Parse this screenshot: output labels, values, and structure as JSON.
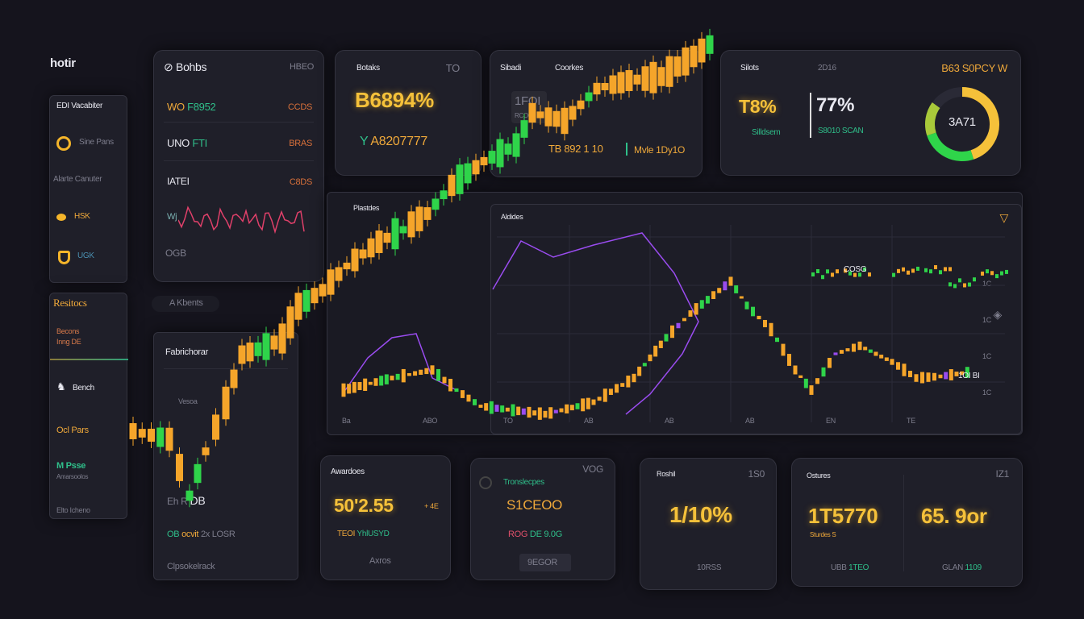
{
  "app": {
    "logo": "hotir"
  },
  "sidebar": {
    "panel1": {
      "items": [
        {
          "label": "EDI Vacabiter"
        },
        {
          "label": "Sine Pans",
          "icon": "clock-icon"
        },
        {
          "label": "Alarte Canuter"
        },
        {
          "label": "HSK",
          "icon": "coin-icon"
        },
        {
          "label": "UGK",
          "icon": "shield-icon"
        }
      ]
    },
    "panel2": {
      "title": "Resitocs",
      "sub1": "Becons",
      "sub2": "Inng DE",
      "items": [
        {
          "label": "Bench",
          "icon": "bull-icon"
        },
        {
          "label": "Ocl Pars"
        },
        {
          "label": "M Psse",
          "sub": "Amarsoolos"
        },
        {
          "label": "Elto Icheno"
        }
      ]
    }
  },
  "card_bohbs": {
    "title": "Bohbs",
    "right": "HBEO",
    "rows": [
      {
        "a": "WO",
        "b": "F8952",
        "v": "CCDS"
      },
      {
        "a": "UNO",
        "b": "FTI",
        "v": "BRAS"
      },
      {
        "a": "IATEI",
        "b": "",
        "v": "C8DS"
      }
    ],
    "spark_label": "Wj",
    "footer": "OGB"
  },
  "pill": {
    "label": "A Kbents"
  },
  "card_fab": {
    "title": "Fabrichorar",
    "mid": "Vesoa",
    "val": "DB",
    "val_prefix": "Eh R",
    "row_a": "OB",
    "row_b": "ocvit",
    "row_c": "2x LOSR",
    "footer": "Clpsokelrack"
  },
  "card_botaks": {
    "title": "Botaks",
    "right": "TO",
    "value": "B6894%",
    "sub_prefix": "Y",
    "sub": "A8207777"
  },
  "card_sibadi": {
    "title": "Sibadi",
    "title2": "Coorkes",
    "box": "1FOI",
    "box_sub": "RCO0T",
    "stat1": "TB 892 1 10",
    "stat2": "Mvle 1Dy1O"
  },
  "card_silots": {
    "title": "Silots",
    "mid": "2D16",
    "right": "B63 S0PCY W",
    "v1": "T8%",
    "v1_sub": "Silldsem",
    "v2": "77%",
    "v2_sub": "S8010 SCAN",
    "donut_label": "3A71",
    "donut_segments": [
      {
        "color": "#f5c13a",
        "share": 0.45
      },
      {
        "color": "#2fd44a",
        "share": 0.25
      },
      {
        "color": "#a9c93a",
        "share": 0.15
      },
      {
        "color": "#2a2a36",
        "share": 0.15
      }
    ]
  },
  "chart_area": {
    "left_label": "Plastdes",
    "right_label": "Aldides",
    "right_ticks": [
      "1C",
      "1C",
      "1C",
      "1C"
    ],
    "x_ticks": [
      "Ba",
      "ABO",
      "TO",
      "AB",
      "AB",
      "AB",
      "EN",
      "TE"
    ],
    "legend": "COSG",
    "legend2": "1OI BI"
  },
  "card_award": {
    "title": "Awardoes",
    "value": "50'2.55",
    "suffix": "+ 4E",
    "sub_a": "TEOI",
    "sub_b": "YhlUSYD",
    "footer": "Axros"
  },
  "card_trons": {
    "title": "Tronslecpes",
    "right": "VOG",
    "value": "S1CEOO",
    "sub_a": "ROG",
    "sub_b": "DE 9.0G",
    "button": "9EGOR"
  },
  "card_roshil": {
    "title": "Roshil",
    "right": "1S0",
    "value": "1/10%",
    "footer": "10RSS"
  },
  "card_ostures": {
    "title": "Ostures",
    "right": "IZ1",
    "v1": "1T5770",
    "v1_sub": "Sturdes S",
    "v2": "65. 9or",
    "f1a": "UBB",
    "f1b": "1TEO",
    "f2a": "GLAN",
    "f2b": "1109"
  },
  "colors": {
    "bg": "#15141d",
    "card": "#1f1f29",
    "up": "#2fd44a",
    "down": "#f5a52a",
    "accent": "#f5c13a",
    "purple": "#9a4cf0"
  }
}
